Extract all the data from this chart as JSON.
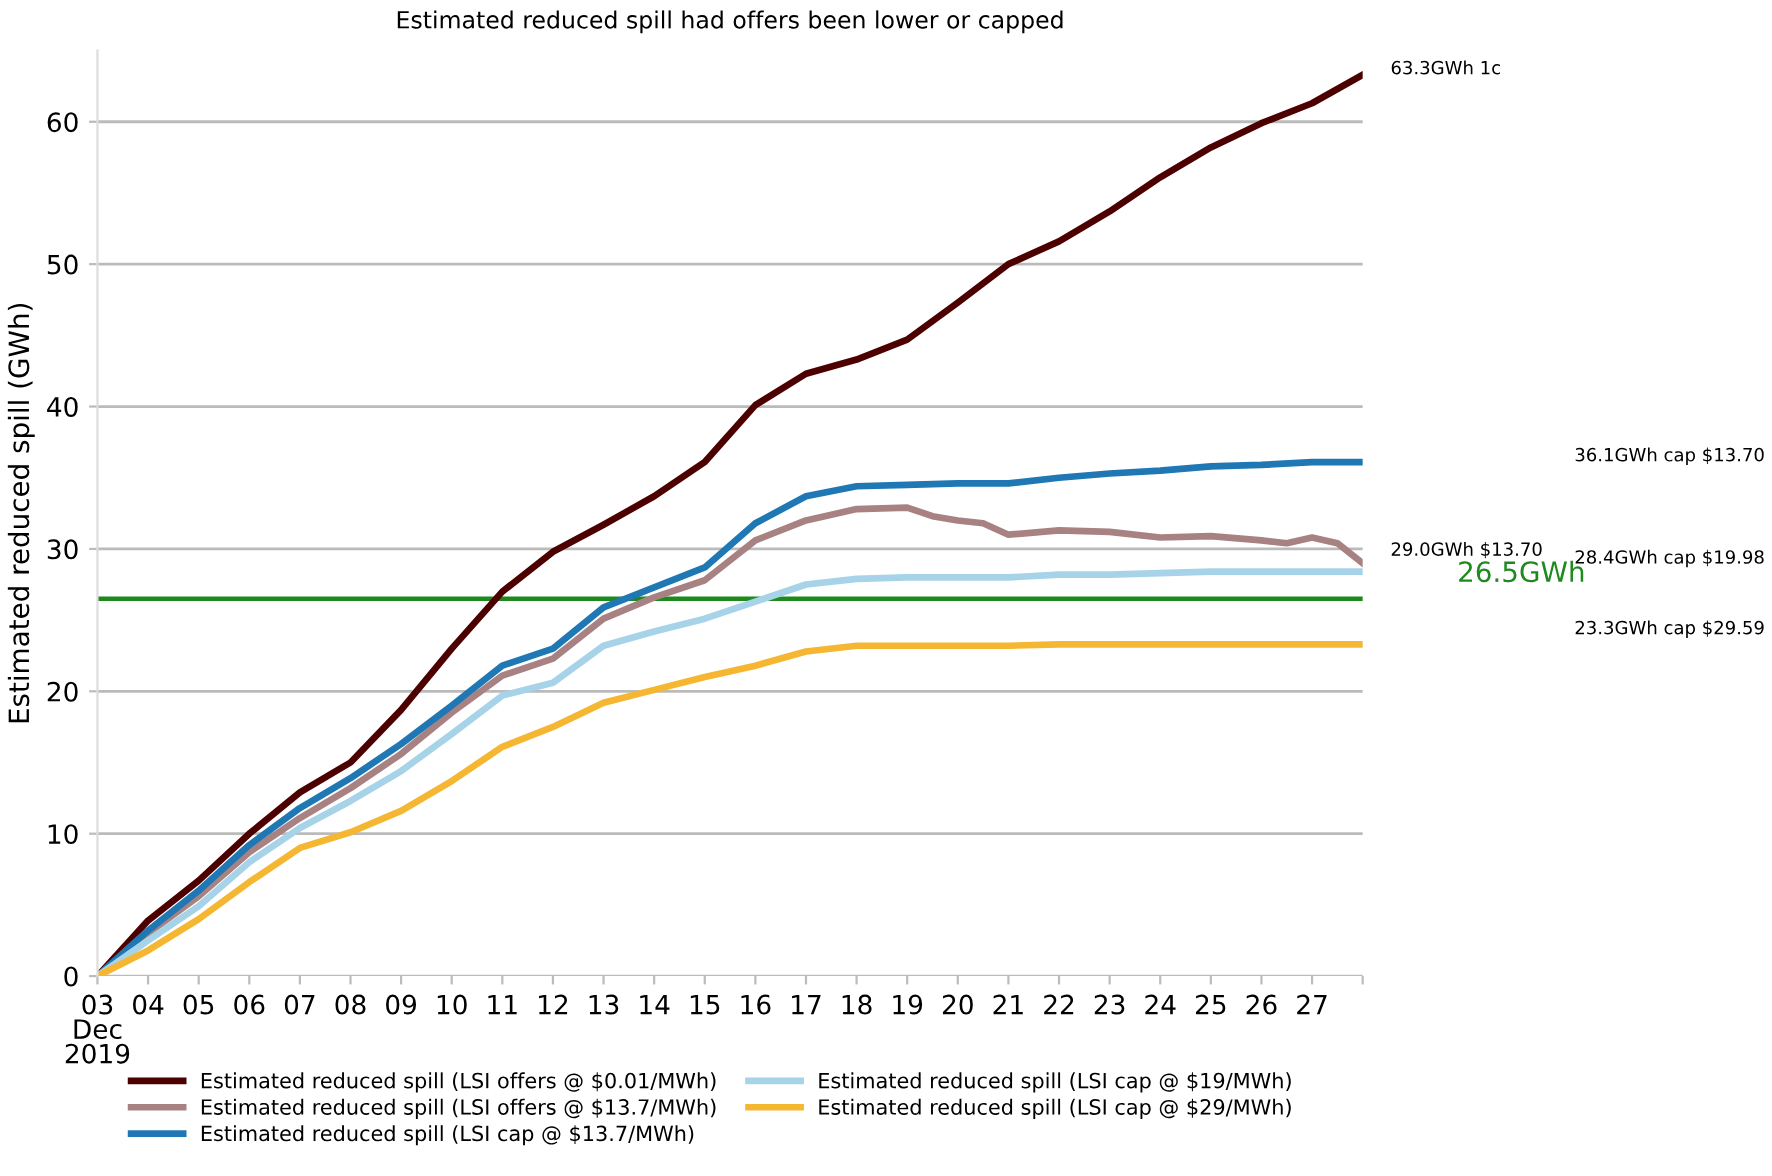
{
  "chart_data": {
    "type": "line",
    "title": "Estimated reduced spill had offers been lower or capped",
    "ylabel": "Estimated reduced spill (GWh)",
    "x": [
      "2019-12-03",
      "2019-12-04",
      "2019-12-05",
      "2019-12-06",
      "2019-12-07",
      "2019-12-08",
      "2019-12-09",
      "2019-12-10",
      "2019-12-11",
      "2019-12-12",
      "2019-12-13",
      "2019-12-14",
      "2019-12-15",
      "2019-12-16",
      "2019-12-17",
      "2019-12-18",
      "2019-12-19",
      "2019-12-20",
      "2019-12-21",
      "2019-12-22",
      "2019-12-23",
      "2019-12-24",
      "2019-12-25",
      "2019-12-26",
      "2019-12-27",
      "2019-12-28"
    ],
    "series": [
      {
        "name": "Estimated reduced spill (LSI offers @ $0.01/MWh)",
        "color": "#4d0000",
        "values": [
          0,
          3.9,
          6.7,
          10,
          12.9,
          15.0,
          18.7,
          23,
          27.0,
          29.8,
          31.7,
          33.7,
          36.1,
          40.1,
          42.3,
          43.3,
          44.7,
          47.3,
          50.0,
          51.6,
          53.7,
          56.1,
          58.2,
          59.9,
          61.3,
          63.3
        ]
      },
      {
        "name": "Estimated reduced spill (LSI offers @ $13.7/MWh)",
        "color": "#a88282",
        "x": [
          "2019-12-03",
          "2019-12-04",
          "2019-12-05",
          "2019-12-06",
          "2019-12-07",
          "2019-12-08",
          "2019-12-09",
          "2019-12-10",
          "2019-12-11",
          "2019-12-12",
          "2019-12-13",
          "2019-12-14",
          "2019-12-15",
          "2019-12-16",
          "2019-12-17",
          "2019-12-18",
          "2019-12-19",
          "2019-12-19T12:00",
          "2019-12-20",
          "2019-12-20T12:00",
          "2019-12-21",
          "2019-12-22",
          "2019-12-23",
          "2019-12-24",
          "2019-12-25",
          "2019-12-26",
          "2019-12-26T12:00",
          "2019-12-27",
          "2019-12-27T12:00",
          "2019-12-28"
        ],
        "values": [
          0,
          3.0,
          5.6,
          8.7,
          11.1,
          13.2,
          15.6,
          18.5,
          21.1,
          22.3,
          25.1,
          26.6,
          27.8,
          30.6,
          32.0,
          32.8,
          32.9,
          32.3,
          32.0,
          31.8,
          31.0,
          31.3,
          31.2,
          30.8,
          30.9,
          30.6,
          30.4,
          30.8,
          30.4,
          29.0
        ]
      },
      {
        "name": "Estimated reduced spill (LSI cap @ $13.7/MWh)",
        "color": "#1f78b4",
        "values": [
          0,
          3.2,
          6.0,
          9.2,
          11.8,
          13.9,
          16.3,
          19.0,
          21.8,
          23.0,
          25.9,
          27.3,
          28.7,
          31.8,
          33.7,
          34.4,
          34.5,
          34.6,
          34.6,
          35.0,
          35.3,
          35.5,
          35.8,
          35.9,
          36.1,
          36.1
        ]
      },
      {
        "name": "Estimated reduced spill (LSI cap @ $19/MWh)",
        "color": "#a6d3e8",
        "values": [
          0,
          2.5,
          4.9,
          8.0,
          10.4,
          12.3,
          14.4,
          17.0,
          19.7,
          20.6,
          23.2,
          24.2,
          25.1,
          26.3,
          27.5,
          27.9,
          28.0,
          28.0,
          28.0,
          28.2,
          28.2,
          28.3,
          28.4,
          28.4,
          28.4,
          28.4
        ]
      },
      {
        "name": "Estimated reduced spill (LSI cap @ $29/MWh)",
        "color": "#f5b731",
        "values": [
          0,
          1.8,
          4.0,
          6.6,
          9.0,
          10.1,
          11.6,
          13.7,
          16.1,
          17.5,
          19.2,
          20.1,
          21.0,
          21.8,
          22.8,
          23.2,
          23.2,
          23.2,
          23.2,
          23.3,
          23.3,
          23.3,
          23.3,
          23.3,
          23.3,
          23.3
        ]
      }
    ],
    "xlim": [
      "2019-12-03",
      "2019-12-28"
    ],
    "xticks": [
      {
        "value": "2019-12-03",
        "label": "03\nDec\n2019"
      },
      {
        "value": "2019-12-04",
        "label": "04"
      },
      {
        "value": "2019-12-05",
        "label": "05"
      },
      {
        "value": "2019-12-06",
        "label": "06"
      },
      {
        "value": "2019-12-07",
        "label": "07"
      },
      {
        "value": "2019-12-08",
        "label": "08"
      },
      {
        "value": "2019-12-09",
        "label": "09"
      },
      {
        "value": "2019-12-10",
        "label": "10"
      },
      {
        "value": "2019-12-11",
        "label": "11"
      },
      {
        "value": "2019-12-12",
        "label": "12"
      },
      {
        "value": "2019-12-13",
        "label": "13"
      },
      {
        "value": "2019-12-14",
        "label": "14"
      },
      {
        "value": "2019-12-15",
        "label": "15"
      },
      {
        "value": "2019-12-16",
        "label": "16"
      },
      {
        "value": "2019-12-17",
        "label": "17"
      },
      {
        "value": "2019-12-18",
        "label": "18"
      },
      {
        "value": "2019-12-19",
        "label": "19"
      },
      {
        "value": "2019-12-20",
        "label": "20"
      },
      {
        "value": "2019-12-21",
        "label": "21"
      },
      {
        "value": "2019-12-22",
        "label": "22"
      },
      {
        "value": "2019-12-23",
        "label": "23"
      },
      {
        "value": "2019-12-24",
        "label": "24"
      },
      {
        "value": "2019-12-25",
        "label": "25"
      },
      {
        "value": "2019-12-26",
        "label": "26"
      },
      {
        "value": "2019-12-27",
        "label": "27"
      },
      {
        "value": "2019-12-28",
        "label": null
      }
    ],
    "ylim": [
      0,
      65
    ],
    "yticks": [
      0,
      10,
      20,
      30,
      40,
      50,
      60
    ],
    "grid": "y",
    "legend": "bottom",
    "line_style": "solid",
    "marker": "none",
    "ref_lines": [
      {
        "axis": "y",
        "value": 26.5,
        "label": "26.5GWh",
        "color": "#1e8a1e"
      }
    ],
    "annotations": [
      {
        "text": "63.3GWh 1c",
        "x": "2019-12-28",
        "y": 63.3
      },
      {
        "text": "29.0GWh $13.70",
        "x": "2019-12-28",
        "y": 29.0
      },
      "36.1GWh cap $13.70",
      "28.4GWh cap $19.98",
      "23.3GWh cap $29.59"
    ]
  }
}
